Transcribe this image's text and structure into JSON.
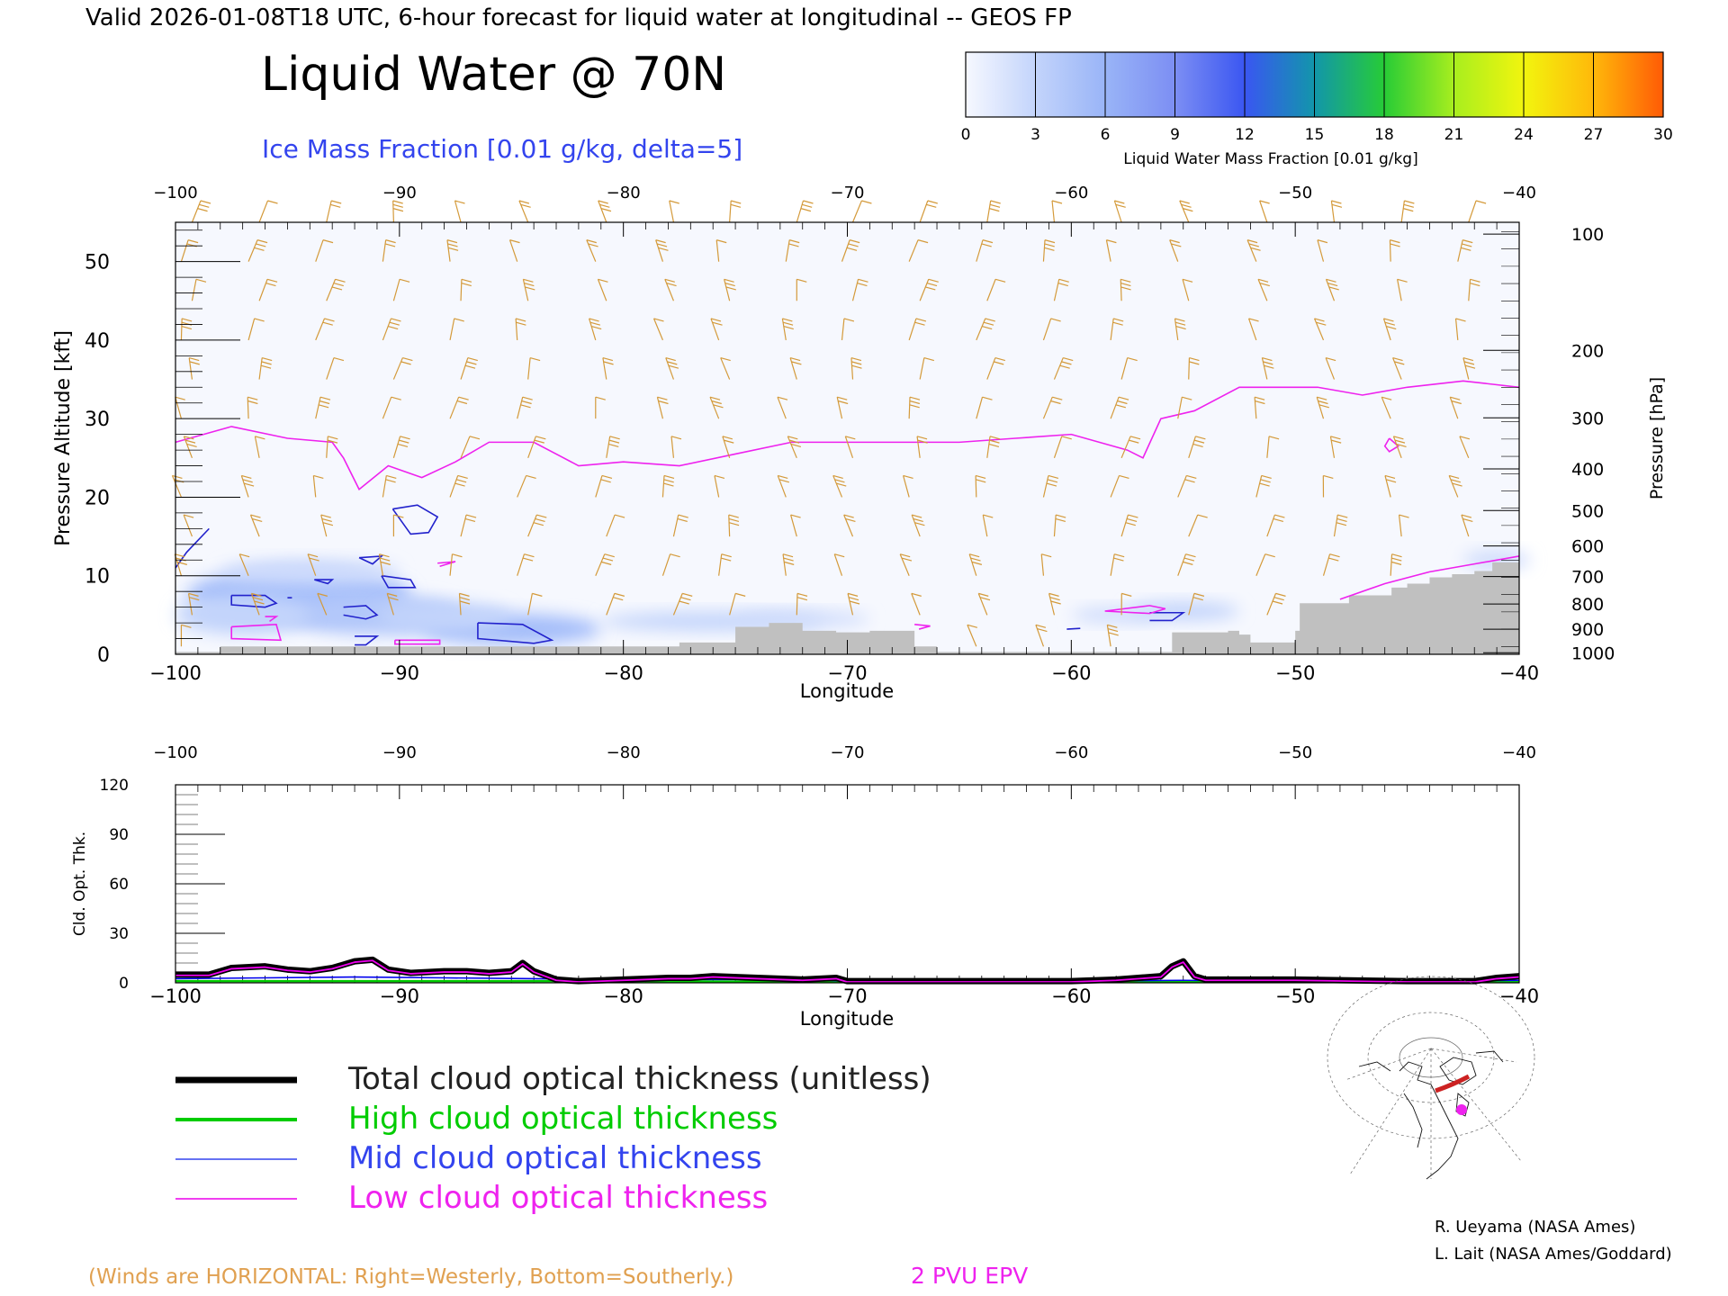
{
  "header": {
    "valid_line": "Valid 2026-01-08T18 UTC, 6-hour forecast for liquid water at longitudinal -- GEOS FP",
    "title": "Liquid Water @ 70N",
    "subtitle": "Ice Mass Fraction [0.01 g/kg, delta=5]"
  },
  "colorbar": {
    "ticks": [
      "0",
      "3",
      "6",
      "9",
      "12",
      "15",
      "18",
      "21",
      "24",
      "27",
      "30"
    ],
    "label": "Liquid Water Mass Fraction [0.01 g/kg]",
    "colors": [
      "#f6f8ff",
      "#c3d4fb",
      "#99b4f7",
      "#7c8ef3",
      "#3a56f2",
      "#1296aa",
      "#27cc36",
      "#a8ee1e",
      "#f2f50e",
      "#ffb80a",
      "#ff5a06"
    ]
  },
  "chart_data": [
    {
      "type": "area",
      "name": "cross-section",
      "xlabel": "Longitude",
      "ylabel": "Pressure Altitude [kft]",
      "y2label": "Pressure [hPa]",
      "xlim": [
        -100,
        -40
      ],
      "ylim": [
        0,
        55
      ],
      "x_ticks": [
        -100,
        -90,
        -80,
        -70,
        -60,
        -50,
        -40
      ],
      "x_tick_labels": [
        "−100",
        "−90",
        "−80",
        "−70",
        "−60",
        "−50",
        "−40"
      ],
      "y_ticks": [
        0,
        10,
        20,
        30,
        40,
        50
      ],
      "y_tick_labels": [
        "0",
        "10",
        "20",
        "30",
        "40",
        "50"
      ],
      "pressure_ticks": [
        {
          "label": "100",
          "alt": 53.5
        },
        {
          "label": "200",
          "alt": 38.7
        },
        {
          "label": "300",
          "alt": 30.1
        },
        {
          "label": "400",
          "alt": 23.6
        },
        {
          "label": "500",
          "alt": 18.3
        },
        {
          "label": "600",
          "alt": 13.8
        },
        {
          "label": "700",
          "alt": 9.9
        },
        {
          "label": "800",
          "alt": 6.4
        },
        {
          "label": "900",
          "alt": 3.2
        },
        {
          "label": "1000",
          "alt": 0.2
        }
      ],
      "epv_2pvu": {
        "x": [
          -100,
          -97.5,
          -95,
          -93,
          -92.5,
          -91.8,
          -90.5,
          -89,
          -87.5,
          -86,
          -84,
          -82,
          -80,
          -77.5,
          -75,
          -72.5,
          -70,
          -67.5,
          -65,
          -62.5,
          -60,
          -57.5,
          -56.8,
          -56,
          -54.5,
          -52.5,
          -49,
          -47,
          -45,
          -42.5,
          -40
        ],
        "y": [
          27,
          29,
          27.5,
          27,
          25,
          21,
          24,
          22.5,
          24.5,
          27,
          27,
          24,
          24.5,
          24,
          25.5,
          27,
          27,
          27,
          27,
          27.5,
          28,
          26,
          25,
          30,
          31,
          34,
          34,
          33,
          34,
          34.8,
          34
        ]
      },
      "epv_2pvu_low": {
        "x": [
          -48,
          -46,
          -44,
          -42,
          -40
        ],
        "y": [
          7,
          9,
          10.5,
          11.5,
          12.5
        ]
      },
      "terrain": {
        "x": [
          -100,
          -98,
          -82,
          -77.5,
          -75,
          -73.5,
          -72,
          -70.5,
          -69,
          -67,
          -66,
          -56,
          -55.5,
          -53,
          -52.5,
          -52,
          -51,
          -50,
          -49.8,
          -48,
          -47.6,
          -46.5,
          -45.7,
          -45,
          -44,
          -43,
          -42,
          -41.2,
          -40
        ],
        "y": [
          0.3,
          1.0,
          1.0,
          1.5,
          3.5,
          4.0,
          3.0,
          2.8,
          3.0,
          1.0,
          0.3,
          0.3,
          2.8,
          3.0,
          2.5,
          1.5,
          1.5,
          3.0,
          6.5,
          6.5,
          7.5,
          7.5,
          8.5,
          9.0,
          9.8,
          10.2,
          10.6,
          11.7,
          12.2
        ]
      },
      "ice_contours": [
        {
          "x": [
            -100,
            -99.5,
            -98.5
          ],
          "y": [
            11,
            13,
            16
          ]
        },
        {
          "x": [
            -97.5,
            -96,
            -95.5,
            -96,
            -97.5,
            -97.5
          ],
          "y": [
            7.5,
            7.5,
            6.5,
            6,
            6.3,
            7.5
          ]
        },
        {
          "x": [
            -92.5,
            -91.5,
            -91,
            -91.5,
            -92.5
          ],
          "y": [
            6,
            6.2,
            5,
            4.5,
            5
          ]
        },
        {
          "x": [
            -92,
            -91,
            -91.5,
            -92
          ],
          "y": [
            2.3,
            2.3,
            1.2,
            1.2
          ]
        },
        {
          "x": [
            -90.3,
            -89.2,
            -88.3,
            -88.7,
            -89.5,
            -90.3
          ],
          "y": [
            18.5,
            19,
            17.5,
            15.5,
            15.3,
            18.5
          ]
        },
        {
          "x": [
            -90.8,
            -89.5,
            -89.3,
            -90.5,
            -90.8
          ],
          "y": [
            10,
            9.5,
            8.5,
            8.5,
            10
          ]
        },
        {
          "x": [
            -91.8,
            -90.8,
            -91.2,
            -91.8
          ],
          "y": [
            12.3,
            12.5,
            11.5,
            12.3
          ]
        },
        {
          "x": [
            -93.8,
            -93,
            -93.2,
            -93.8
          ],
          "y": [
            9.5,
            9.5,
            9,
            9.5
          ]
        },
        {
          "x": [
            -86.5,
            -84.5,
            -83.2,
            -84,
            -86.5,
            -86.5
          ],
          "y": [
            4,
            3.8,
            1.8,
            1.4,
            2,
            4
          ]
        },
        {
          "x": [
            -60.2,
            -59.6
          ],
          "y": [
            3.2,
            3.3
          ]
        },
        {
          "x": [
            -56.5,
            -55,
            -55.5,
            -56.5
          ],
          "y": [
            5.3,
            5.3,
            4.3,
            4.3
          ]
        },
        {
          "x": [
            -95,
            -94.8
          ],
          "y": [
            7.2,
            7.2
          ]
        }
      ],
      "epv_small_contours": [
        {
          "x": [
            -97.5,
            -95.5,
            -95.3,
            -97.5,
            -97.5
          ],
          "y": [
            3.5,
            3.8,
            1.8,
            2.0,
            3.5
          ]
        },
        {
          "x": [
            -96,
            -95.5,
            -95.8
          ],
          "y": [
            4.8,
            4.8,
            4.2
          ]
        },
        {
          "x": [
            -90.2,
            -88.2,
            -88.2,
            -90.2,
            -90.2
          ],
          "y": [
            1.8,
            1.8,
            1.3,
            1.3,
            1.8
          ]
        },
        {
          "x": [
            -88.3,
            -87.5,
            -88.2
          ],
          "y": [
            11.6,
            11.8,
            11.2
          ]
        },
        {
          "x": [
            -67,
            -66.3,
            -66.8
          ],
          "y": [
            3.8,
            3.6,
            3.2
          ]
        },
        {
          "x": [
            -58.5,
            -56.5,
            -55.8,
            -56.5,
            -58.5
          ],
          "y": [
            5.5,
            6.2,
            5.8,
            5.2,
            5.5
          ]
        },
        {
          "x": [
            -45.8,
            -45.4,
            -45.8,
            -46,
            -45.8
          ],
          "y": [
            27.5,
            26.5,
            25.8,
            26.5,
            27.5
          ]
        }
      ],
      "clouds": [
        {
          "x": -94.5,
          "y": 7.5,
          "rx": 5,
          "ry": 3.5,
          "level": 5
        },
        {
          "x": -91,
          "y": 5,
          "rx": 4,
          "ry": 2.5,
          "level": 4
        },
        {
          "x": -85,
          "y": 3.2,
          "rx": 4,
          "ry": 2,
          "level": 5
        },
        {
          "x": -88,
          "y": 4.8,
          "rx": 3,
          "ry": 1.8,
          "level": 3
        },
        {
          "x": -97,
          "y": 5,
          "rx": 3,
          "ry": 2.5,
          "level": 3
        },
        {
          "x": -76,
          "y": 4.2,
          "rx": 5,
          "ry": 1.2,
          "level": 3
        },
        {
          "x": -72,
          "y": 4.5,
          "rx": 3,
          "ry": 1,
          "level": 2
        },
        {
          "x": -55,
          "y": 5.5,
          "rx": 2.5,
          "ry": 1.2,
          "level": 3
        },
        {
          "x": -58,
          "y": 5,
          "rx": 2,
          "ry": 1,
          "level": 2
        },
        {
          "x": -41,
          "y": 12,
          "rx": 1.5,
          "ry": 1.2,
          "level": 2
        },
        {
          "x": -94,
          "y": 10.5,
          "rx": 4,
          "ry": 1.5,
          "level": 2
        }
      ],
      "wind_columns": [
        -99.5,
        -96.5,
        -93.5,
        -90.5,
        -87.5,
        -84.5,
        -81,
        -78,
        -75.5,
        -72.5,
        -70,
        -67,
        -64,
        -61,
        -58,
        -55,
        -51.5,
        -48.5,
        -45.5,
        -42.5
      ]
    },
    {
      "type": "line",
      "name": "cloud-optical-thickness",
      "xlabel": "Longitude",
      "ylabel": "Cld. Opt. Thk.",
      "xlim": [
        -100,
        -40
      ],
      "ylim": [
        0,
        120
      ],
      "x_ticks": [
        -100,
        -90,
        -80,
        -70,
        -60,
        -50,
        -40
      ],
      "x_tick_labels": [
        "−100",
        "−90",
        "−80",
        "−70",
        "−60",
        "−50",
        "−40"
      ],
      "y_ticks": [
        0,
        30,
        60,
        90,
        120
      ],
      "y_tick_labels": [
        "0",
        "30",
        "60",
        "90",
        "120"
      ],
      "series": [
        {
          "name": "Total cloud optical thickness (unitless)",
          "color": "#000000",
          "x": [
            -100,
            -98.5,
            -97.5,
            -96,
            -95,
            -94,
            -93,
            -92,
            -91.2,
            -90.5,
            -89.5,
            -88,
            -87,
            -86,
            -85,
            -84.5,
            -84,
            -83,
            -82,
            -80,
            -78,
            -77,
            -76,
            -74,
            -72,
            -70.5,
            -70,
            -68,
            -65,
            -60,
            -58,
            -56,
            -55.5,
            -55,
            -54.5,
            -54,
            -50,
            -45,
            -42,
            -41,
            -40
          ],
          "y": [
            5,
            5,
            9,
            10,
            8,
            7,
            9,
            13,
            14,
            8,
            6,
            7,
            7,
            6,
            7,
            12,
            7,
            2,
            1,
            2,
            3,
            3,
            4,
            3,
            2,
            3,
            1,
            1,
            1,
            1,
            2,
            4,
            10,
            13,
            4,
            2,
            2,
            1,
            1,
            3,
            4
          ]
        },
        {
          "name": "High cloud optical thickness",
          "color": "#00cc00",
          "x": [
            -100,
            -90,
            -80,
            -70,
            -60,
            -50,
            -40
          ],
          "y": [
            1,
            1,
            1,
            0.5,
            0.5,
            0.5,
            0.5
          ]
        },
        {
          "name": "Mid cloud optical thickness",
          "color": "#0000ee",
          "x": [
            -100,
            -96,
            -92,
            -88,
            -84,
            -80,
            -76,
            -72,
            -70,
            -65,
            -60,
            -55,
            -50,
            -45,
            -40
          ],
          "y": [
            2.5,
            3,
            3.5,
            3,
            2.5,
            2,
            2,
            2,
            1,
            1,
            1,
            1.5,
            1,
            1,
            1.5
          ]
        },
        {
          "name": "Low cloud optical thickness",
          "color": "#ee00ee",
          "x": [
            -100,
            -98.5,
            -97.5,
            -96,
            -95,
            -94,
            -93,
            -92,
            -91.2,
            -90.5,
            -89.5,
            -88,
            -87,
            -86,
            -85,
            -84.5,
            -84,
            -83,
            -82,
            -80,
            -78,
            -77,
            -76,
            -74,
            -72,
            -70.5,
            -70,
            -68,
            -65,
            -60,
            -58,
            -56,
            -55.5,
            -55,
            -54.5,
            -54,
            -50,
            -45,
            -42,
            -41,
            -40
          ],
          "y": [
            4.5,
            4.5,
            8.5,
            9.5,
            7.5,
            6.5,
            8.5,
            12.5,
            13.5,
            7.5,
            5.5,
            6.5,
            6.5,
            5.5,
            6.5,
            11.5,
            6.5,
            1.5,
            0.5,
            1.5,
            2.5,
            2.5,
            3.5,
            2.5,
            1.5,
            2.5,
            0.5,
            0.5,
            0.5,
            0.5,
            1.5,
            3.5,
            9.5,
            12.5,
            3.5,
            1.5,
            1.5,
            0.5,
            0.5,
            2.5,
            3.5
          ]
        }
      ]
    }
  ],
  "legend": {
    "items": [
      {
        "label": "Total cloud optical thickness (unitless)",
        "color": "#000000"
      },
      {
        "label": "High cloud optical thickness",
        "color": "#00cc00"
      },
      {
        "label": "Mid cloud optical thickness",
        "color": "#3344ee"
      },
      {
        "label": "Low cloud optical thickness",
        "color": "#ee22ee"
      }
    ]
  },
  "credits": {
    "line1": "R. Ueyama (NASA Ames)",
    "line2": "L. Lait (NASA Ames/Goddard)"
  },
  "footer": {
    "winds_note": "(Winds are HORIZONTAL: Right=Westerly, Bottom=Southerly.)",
    "epv_label": "2 PVU EPV"
  },
  "colors": {
    "wind": "#d49a3a",
    "ice": "#2222cc",
    "epv": "#ee22ee",
    "terrain": "#c0c0c0",
    "subtitle": "#3344ee",
    "winds_note": "#e0a050"
  }
}
